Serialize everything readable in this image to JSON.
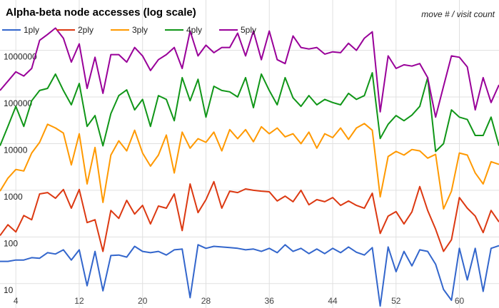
{
  "chart_data": {
    "type": "line",
    "title": "Alpha-beta node accesses (log scale)",
    "annotation": "move # / visit count",
    "x": [
      2,
      3,
      4,
      5,
      6,
      7,
      8,
      9,
      10,
      11,
      12,
      13,
      14,
      15,
      16,
      17,
      18,
      19,
      20,
      21,
      22,
      23,
      24,
      25,
      26,
      27,
      28,
      29,
      30,
      31,
      32,
      33,
      34,
      35,
      36,
      37,
      38,
      39,
      40,
      41,
      42,
      43,
      44,
      45,
      46,
      47,
      48,
      49,
      50,
      51,
      52,
      53,
      54,
      55,
      56,
      57,
      58,
      59,
      60,
      61,
      62,
      63,
      64,
      65
    ],
    "xlim": [
      2,
      65
    ],
    "xticks": [
      4,
      12,
      20,
      28,
      36,
      44,
      52,
      60
    ],
    "ylim": [
      3,
      12000000
    ],
    "yticks": [
      10,
      100,
      1000,
      10000,
      100000,
      1000000
    ],
    "log_y": true,
    "grid": true,
    "legend": "top",
    "series": [
      {
        "name": "1ply",
        "color": "#3366cc",
        "values": [
          30,
          30,
          32,
          32,
          36,
          35,
          46,
          43,
          53,
          32,
          53,
          9,
          49,
          7,
          40,
          41,
          37,
          63,
          49,
          46,
          49,
          41,
          53,
          55,
          5,
          68,
          57,
          63,
          61,
          59,
          57,
          53,
          55,
          49,
          57,
          46,
          68,
          49,
          57,
          44,
          55,
          44,
          57,
          46,
          61,
          47,
          41,
          59,
          3.3,
          61,
          18,
          49,
          24,
          53,
          49,
          26,
          7.5,
          4.4,
          57,
          12,
          57,
          6.8,
          57,
          65
        ]
      },
      {
        "name": "2ply",
        "color": "#dc3912",
        "values": [
          107,
          183,
          128,
          288,
          234,
          835,
          895,
          675,
          1040,
          413,
          1040,
          203,
          234,
          49,
          370,
          250,
          610,
          310,
          475,
          190,
          460,
          413,
          835,
          137,
          1370,
          333,
          630,
          1530,
          413,
          960,
          895,
          1070,
          1000,
          960,
          930,
          590,
          750,
          570,
          1000,
          490,
          630,
          570,
          700,
          475,
          590,
          475,
          413,
          865,
          119,
          280,
          350,
          190,
          345,
          1200,
          370,
          147,
          49,
          87,
          700,
          413,
          280,
          124,
          370,
          210
        ]
      },
      {
        "name": "3ply",
        "color": "#ff9900",
        "values": [
          960,
          1820,
          2800,
          2600,
          6300,
          10700,
          26000,
          21700,
          16900,
          3500,
          16300,
          1370,
          8300,
          550,
          5700,
          11500,
          7000,
          19400,
          6300,
          3300,
          5700,
          15300,
          2350,
          17700,
          8000,
          12800,
          10700,
          17700,
          7000,
          20000,
          12800,
          20000,
          11000,
          23000,
          16300,
          21700,
          14000,
          16300,
          10000,
          17700,
          8000,
          16300,
          13500,
          21700,
          12400,
          21700,
          27000,
          19400,
          725,
          5300,
          6800,
          5700,
          7500,
          7000,
          4900,
          5900,
          400,
          960,
          6300,
          5700,
          2350,
          1370,
          4100,
          3600
        ]
      },
      {
        "name": "4ply",
        "color": "#109618",
        "values": [
          9000,
          23400,
          63000,
          23400,
          83000,
          138000,
          153000,
          310000,
          138000,
          68000,
          195000,
          23400,
          40000,
          9000,
          44000,
          107000,
          142000,
          53000,
          89000,
          23400,
          107000,
          89000,
          31000,
          260000,
          83000,
          240000,
          37000,
          170000,
          138000,
          129000,
          100000,
          260000,
          59000,
          310000,
          138000,
          68000,
          260000,
          96000,
          63000,
          107000,
          68000,
          89000,
          76000,
          68000,
          120000,
          89000,
          107000,
          330000,
          12900,
          26000,
          40000,
          31000,
          41000,
          63000,
          260000,
          6800,
          10000,
          53000,
          37000,
          33000,
          15000,
          15000,
          37000,
          9000
        ]
      },
      {
        "name": "5ply",
        "color": "#990099",
        "values": [
          138000,
          219000,
          347000,
          282000,
          410000,
          1640000,
          2190000,
          3000000,
          1820000,
          560000,
          1380000,
          153000,
          710000,
          120000,
          810000,
          810000,
          560000,
          1150000,
          760000,
          370000,
          630000,
          810000,
          1150000,
          410000,
          2600000,
          760000,
          1290000,
          890000,
          1150000,
          1150000,
          2340000,
          760000,
          2600000,
          630000,
          2600000,
          630000,
          520000,
          2040000,
          1150000,
          1070000,
          1150000,
          830000,
          930000,
          890000,
          1420000,
          1000000,
          1820000,
          2500000,
          48000,
          760000,
          410000,
          490000,
          460000,
          520000,
          260000,
          37000,
          170000,
          760000,
          710000,
          440000,
          53000,
          260000,
          76000,
          182000
        ]
      }
    ]
  }
}
